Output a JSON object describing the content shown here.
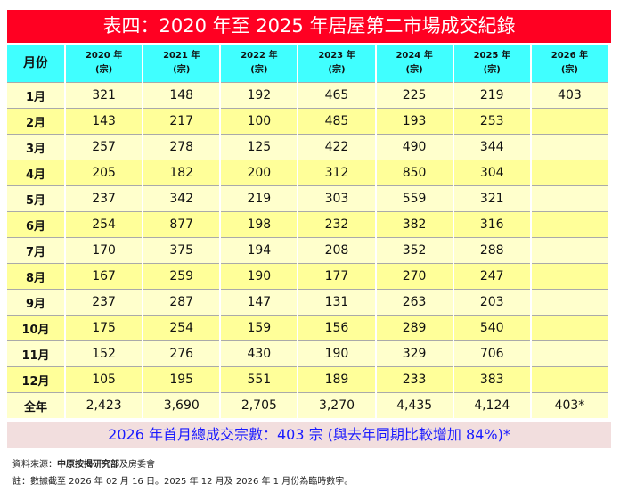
{
  "title": "表四：2020 年至 2025 年居屋第二市場成交紀錄",
  "header": {
    "month": "月份",
    "unit": "(宗)",
    "years": [
      "2020 年",
      "2021 年",
      "2022 年",
      "2023 年",
      "2024 年",
      "2025 年",
      "2026 年"
    ]
  },
  "rows": [
    {
      "month": "1月",
      "values": [
        "321",
        "148",
        "192",
        "465",
        "225",
        "219",
        "403"
      ]
    },
    {
      "month": "2月",
      "values": [
        "143",
        "217",
        "100",
        "485",
        "193",
        "253",
        ""
      ]
    },
    {
      "month": "3月",
      "values": [
        "257",
        "278",
        "125",
        "422",
        "490",
        "344",
        ""
      ]
    },
    {
      "month": "4月",
      "values": [
        "205",
        "182",
        "200",
        "312",
        "850",
        "304",
        ""
      ]
    },
    {
      "month": "5月",
      "values": [
        "237",
        "342",
        "219",
        "303",
        "559",
        "321",
        ""
      ]
    },
    {
      "month": "6月",
      "values": [
        "254",
        "877",
        "198",
        "232",
        "382",
        "316",
        ""
      ]
    },
    {
      "month": "7月",
      "values": [
        "170",
        "375",
        "194",
        "208",
        "352",
        "288",
        ""
      ]
    },
    {
      "month": "8月",
      "values": [
        "167",
        "259",
        "190",
        "177",
        "270",
        "247",
        ""
      ]
    },
    {
      "month": "9月",
      "values": [
        "237",
        "287",
        "147",
        "131",
        "263",
        "203",
        ""
      ]
    },
    {
      "month": "10月",
      "values": [
        "175",
        "254",
        "159",
        "156",
        "289",
        "540",
        ""
      ]
    },
    {
      "month": "11月",
      "values": [
        "152",
        "276",
        "430",
        "190",
        "329",
        "706",
        ""
      ]
    },
    {
      "month": "12月",
      "values": [
        "105",
        "195",
        "551",
        "189",
        "233",
        "383",
        ""
      ]
    }
  ],
  "total": {
    "month": "全年",
    "values": [
      "2,423",
      "3,690",
      "2,705",
      "3,270",
      "4,435",
      "4,124",
      "403*"
    ]
  },
  "banner": "2026 年首月總成交宗數：403 宗 (與去年同期比較增加 84%)*",
  "source_label": "資料來源：",
  "source_bold": "中原按揭研究部",
  "source_rest": "及房委會",
  "note": "註：數據截至 2026 年 02 月 16 日。2025 年 12 月及 2026 年 1 月份為臨時數字。"
}
